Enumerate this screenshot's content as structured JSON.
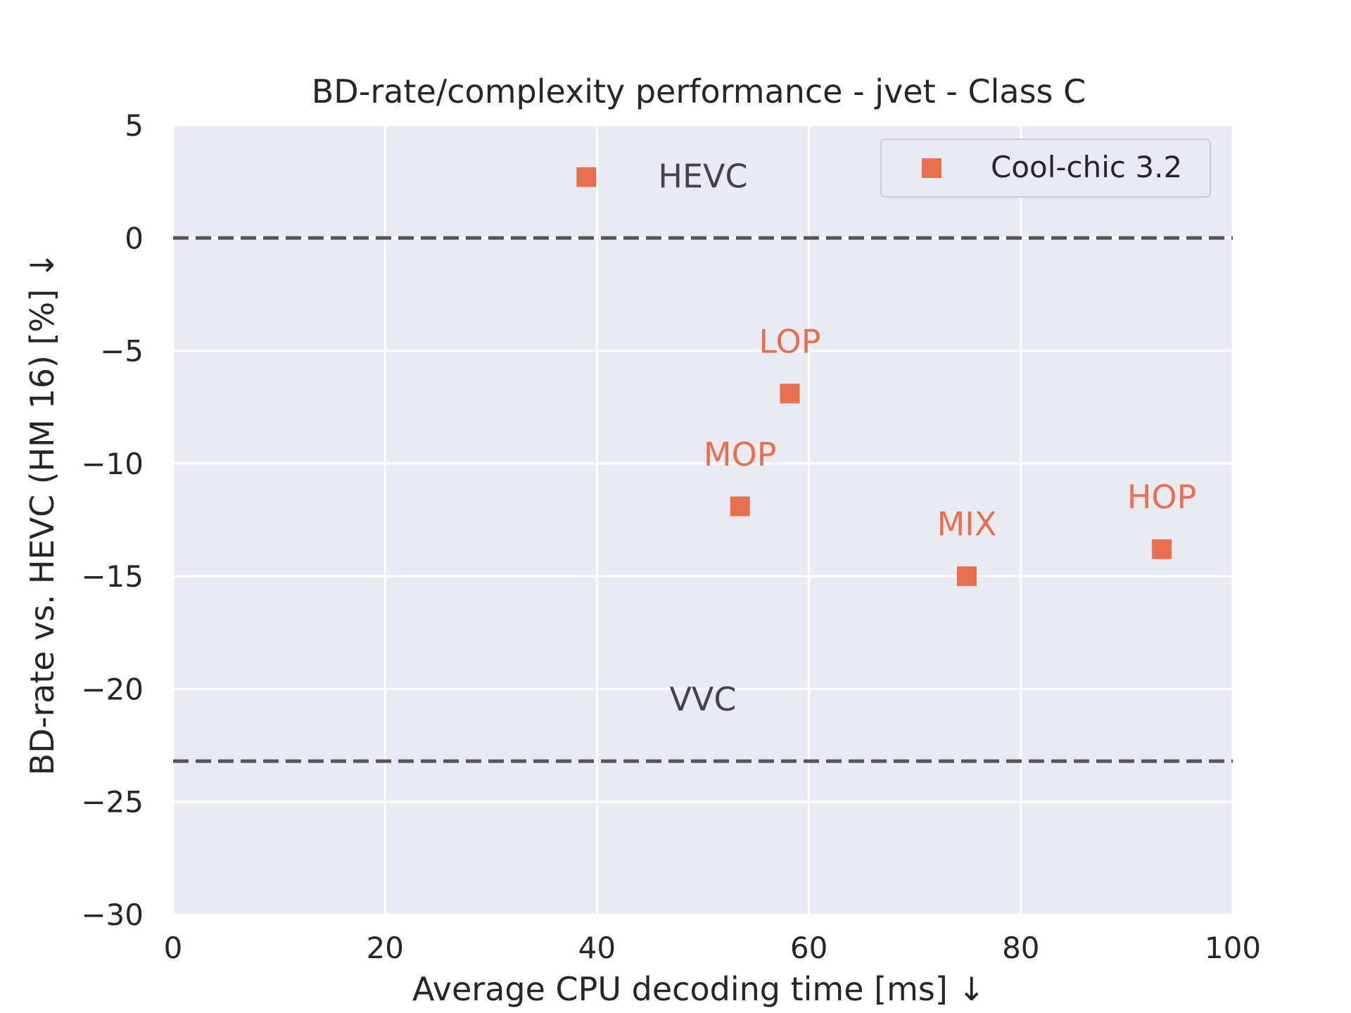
{
  "chart_data": {
    "type": "scatter",
    "title": "BD-rate/complexity performance - jvet - Class C",
    "xlabel": "Average CPU decoding time [ms] ↓",
    "ylabel": "BD-rate vs. HEVC (HM 16) [%] ↓",
    "xlim": [
      0,
      100
    ],
    "ylim": [
      -30,
      5
    ],
    "xticks": [
      0,
      20,
      40,
      60,
      80,
      100
    ],
    "yticks": [
      5,
      0,
      -5,
      -10,
      -15,
      -20,
      -25,
      -30
    ],
    "xtick_labels": [
      "0",
      "20",
      "40",
      "60",
      "80",
      "100"
    ],
    "ytick_labels": [
      "5",
      "0",
      "−5",
      "−10",
      "−15",
      "−20",
      "−25",
      "−30"
    ],
    "grid": true,
    "legend_position": "top-right",
    "series": [
      {
        "name": "Cool-chic 3.2",
        "color": "#e8704f",
        "marker": "square",
        "points": [
          {
            "x": 39.0,
            "y": 2.7,
            "label": ""
          },
          {
            "x": 58.2,
            "y": -6.9,
            "label": "LOP"
          },
          {
            "x": 53.5,
            "y": -11.9,
            "label": "MOP"
          },
          {
            "x": 74.9,
            "y": -15.0,
            "label": "MIX"
          },
          {
            "x": 93.3,
            "y": -13.8,
            "label": "HOP"
          }
        ]
      }
    ],
    "reference_lines": [
      {
        "label": "HEVC",
        "y": 0,
        "label_x": 50,
        "color": "#555555"
      },
      {
        "label": "VVC",
        "y": -23.2,
        "label_x": 50,
        "color": "#555555"
      }
    ]
  }
}
